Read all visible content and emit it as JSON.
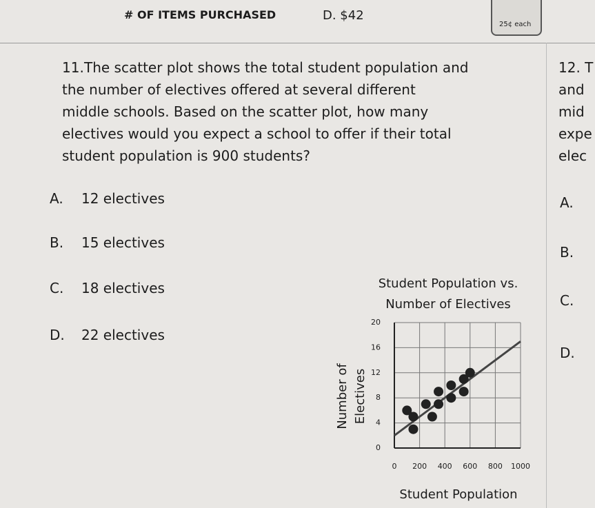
{
  "header": {
    "label": "# OF ITEMS PURCHASED",
    "answer": "D. $42",
    "cup": "25¢ each"
  },
  "question": {
    "number": "11.",
    "lines": [
      "The scatter plot shows the total student population and",
      "the number of electives offered at several different",
      "middle schools. Based on the scatter plot, how many",
      "electives would you expect a school to offer if their total",
      "student population is 900 students?"
    ]
  },
  "options": [
    {
      "letter": "A.",
      "text": "12 electives"
    },
    {
      "letter": "B.",
      "text": "15 electives"
    },
    {
      "letter": "C.",
      "text": "18 electives"
    },
    {
      "letter": "D.",
      "text": "22 electives"
    }
  ],
  "next_question": {
    "lines": [
      "12. T",
      "and",
      "mid",
      "expe",
      "elec"
    ],
    "options": [
      "A.",
      "B.",
      "C.",
      "D."
    ]
  },
  "chart_data": {
    "type": "scatter",
    "title": [
      "Student Population vs.",
      "Number of Electives"
    ],
    "xlabel": "Student Population",
    "ylabel": [
      "Number of",
      "Electives"
    ],
    "x": [
      100,
      150,
      150,
      250,
      300,
      350,
      350,
      450,
      450,
      550,
      550,
      600
    ],
    "values": [
      6,
      5,
      3,
      7,
      5,
      9,
      7,
      10,
      8,
      11,
      9,
      12
    ],
    "color": "#222222",
    "trend_line": {
      "x": [
        0,
        1000
      ],
      "values": [
        2,
        17
      ]
    },
    "xlim": [
      0,
      1000
    ],
    "xticks": [
      0,
      200,
      400,
      600,
      800,
      1000
    ],
    "ylim": [
      0,
      20
    ],
    "yticks": [
      0,
      4,
      8,
      12,
      16,
      20
    ],
    "grid": true
  }
}
